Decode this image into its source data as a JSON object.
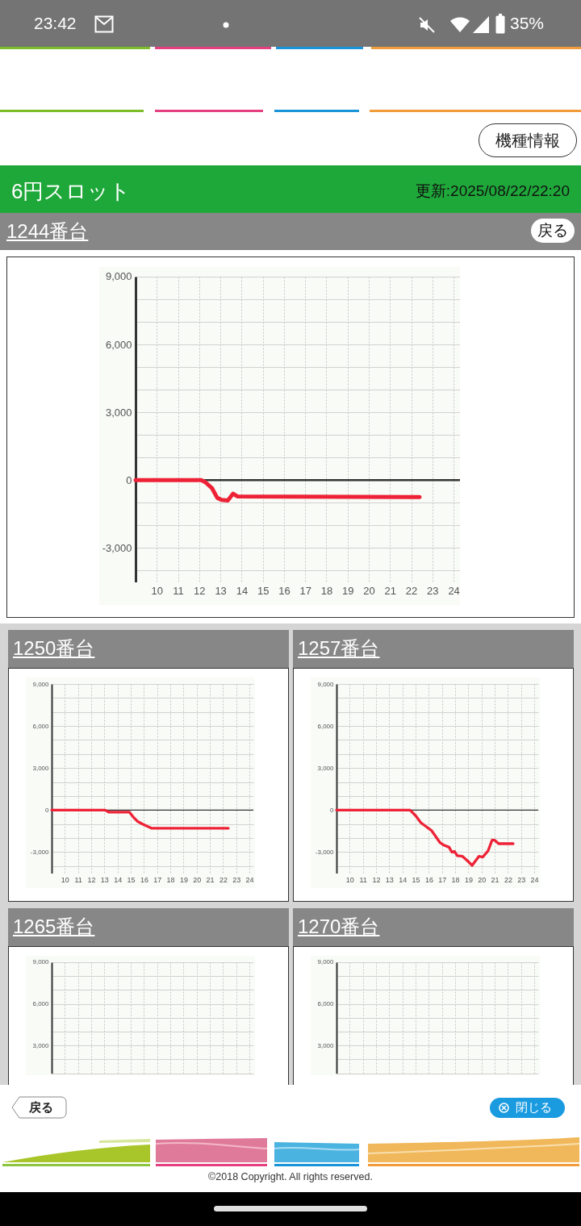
{
  "chart_data": [
    {
      "type": "line",
      "title": "1244番台",
      "annotations": [
        "23:42",
        "35%",
        "機種情報",
        "6円スロット",
        "更新:2025/08/22/22:20",
        "戻る",
        "戻る",
        "閉じる",
        "©2018 Copyright. All rights reserved."
      ],
      "series": [
        {
          "color": "#ee2237",
          "x": [
            9,
            12.1,
            12.3,
            12.6,
            12.85,
            13.05,
            13.35,
            13.6,
            13.8,
            22.4
          ],
          "values": [
            0,
            0,
            -100,
            -350,
            -780,
            -870,
            -900,
            -600,
            -720,
            -750
          ]
        }
      ],
      "xlim": [
        9,
        24.3
      ],
      "xticks": [
        10,
        11,
        12,
        13,
        14,
        15,
        16,
        17,
        18,
        19,
        20,
        21,
        22,
        23,
        24
      ],
      "ylim": [
        -4500,
        9000
      ],
      "yticks": [
        {
          "value": -4000,
          "label": null
        },
        {
          "value": -3000,
          "label": "-3,000"
        },
        {
          "value": -2000,
          "label": null
        },
        {
          "value": -1000,
          "label": null
        },
        {
          "value": 0,
          "label": "0"
        },
        {
          "value": 1000,
          "label": null
        },
        {
          "value": 2000,
          "label": null
        },
        {
          "value": 3000,
          "label": "3,000"
        },
        {
          "value": 4000,
          "label": null
        },
        {
          "value": 5000,
          "label": null
        },
        {
          "value": 6000,
          "label": "6,000"
        },
        {
          "value": 7000,
          "label": null
        },
        {
          "value": 8000,
          "label": null
        },
        {
          "value": 9000,
          "label": "9,000"
        }
      ],
      "grid": true,
      "ref_lines": [
        {
          "axis": "y",
          "value": 0,
          "color": "#333333"
        }
      ]
    },
    {
      "type": "line",
      "title": "1250番台",
      "series": [
        {
          "color": "#ee2237",
          "x": [
            9,
            13.05,
            13.35,
            14.9,
            15.2,
            15.5,
            15.9,
            16.6,
            22.4
          ],
          "values": [
            0,
            0,
            -150,
            -150,
            -500,
            -800,
            -1000,
            -1300,
            -1300
          ]
        }
      ],
      "xlim": [
        9,
        24.3
      ],
      "xticks": [
        10,
        11,
        12,
        13,
        14,
        15,
        16,
        17,
        18,
        19,
        20,
        21,
        22,
        23,
        24
      ],
      "ylim": [
        -4500,
        9000
      ],
      "yticks": [
        {
          "value": -4000,
          "label": null
        },
        {
          "value": -3000,
          "label": "-3,000"
        },
        {
          "value": -2000,
          "label": null
        },
        {
          "value": -1000,
          "label": null
        },
        {
          "value": 0,
          "label": "0"
        },
        {
          "value": 1000,
          "label": null
        },
        {
          "value": 2000,
          "label": null
        },
        {
          "value": 3000,
          "label": "3,000"
        },
        {
          "value": 4000,
          "label": null
        },
        {
          "value": 5000,
          "label": null
        },
        {
          "value": 6000,
          "label": "6,000"
        },
        {
          "value": 7000,
          "label": null
        },
        {
          "value": 8000,
          "label": null
        },
        {
          "value": 9000,
          "label": "9,000"
        }
      ],
      "grid": true,
      "ref_lines": [
        {
          "axis": "y",
          "value": 0,
          "color": "#333333"
        }
      ]
    },
    {
      "type": "line",
      "title": "1257番台",
      "series": [
        {
          "color": "#ee2237",
          "x": [
            9,
            14.58,
            15,
            15.4,
            15.9,
            16.2,
            16.5,
            16.83,
            17.13,
            17.54,
            17.75,
            17.95,
            18.16,
            18.56,
            18.97,
            19.28,
            19.8,
            20.1,
            20.5,
            20.8,
            21,
            21.3,
            22.4
          ],
          "values": [
            0,
            0,
            -400,
            -900,
            -1250,
            -1450,
            -1850,
            -2300,
            -2500,
            -2650,
            -3000,
            -2950,
            -3250,
            -3300,
            -3650,
            -3950,
            -3300,
            -3350,
            -2900,
            -2150,
            -2150,
            -2400,
            -2400
          ]
        }
      ],
      "xlim": [
        9,
        24.3
      ],
      "xticks": [
        10,
        11,
        12,
        13,
        14,
        15,
        16,
        17,
        18,
        19,
        20,
        21,
        22,
        23,
        24
      ],
      "ylim": [
        -4500,
        9000
      ],
      "yticks": [
        {
          "value": -4000,
          "label": null
        },
        {
          "value": -3000,
          "label": "-3,000"
        },
        {
          "value": -2000,
          "label": null
        },
        {
          "value": -1000,
          "label": null
        },
        {
          "value": 0,
          "label": "0"
        },
        {
          "value": 1000,
          "label": null
        },
        {
          "value": 2000,
          "label": null
        },
        {
          "value": 3000,
          "label": "3,000"
        },
        {
          "value": 4000,
          "label": null
        },
        {
          "value": 5000,
          "label": null
        },
        {
          "value": 6000,
          "label": "6,000"
        },
        {
          "value": 7000,
          "label": null
        },
        {
          "value": 8000,
          "label": null
        },
        {
          "value": 9000,
          "label": "9,000"
        }
      ],
      "grid": true,
      "ref_lines": [
        {
          "axis": "y",
          "value": 0,
          "color": "#333333"
        }
      ]
    },
    {
      "type": "line",
      "title": "1265番台",
      "xlim": [
        9,
        24.3
      ],
      "xticks": [
        10,
        11,
        12,
        13,
        14,
        15,
        16,
        17,
        18,
        19,
        20,
        21,
        22,
        23,
        24
      ],
      "ylim": [
        1000,
        9000
      ],
      "yticks": [
        {
          "value": 1000,
          "label": null
        },
        {
          "value": 2000,
          "label": null
        },
        {
          "value": 3000,
          "label": "3,000"
        },
        {
          "value": 4000,
          "label": null
        },
        {
          "value": 5000,
          "label": null
        },
        {
          "value": 6000,
          "label": "6,000"
        },
        {
          "value": 7000,
          "label": null
        },
        {
          "value": 8000,
          "label": null
        },
        {
          "value": 9000,
          "label": "9,000"
        }
      ],
      "grid": true,
      "tick_labels": "y"
    },
    {
      "type": "line",
      "title": "1270番台",
      "xlim": [
        9,
        24.3
      ],
      "xticks": [
        10,
        11,
        12,
        13,
        14,
        15,
        16,
        17,
        18,
        19,
        20,
        21,
        22,
        23,
        24
      ],
      "ylim": [
        1000,
        9000
      ],
      "yticks": [
        {
          "value": 1000,
          "label": null
        },
        {
          "value": 2000,
          "label": null
        },
        {
          "value": 3000,
          "label": "3,000"
        },
        {
          "value": 4000,
          "label": null
        },
        {
          "value": 5000,
          "label": null
        },
        {
          "value": 6000,
          "label": "6,000"
        },
        {
          "value": 7000,
          "label": null
        },
        {
          "value": 8000,
          "label": null
        },
        {
          "value": 9000,
          "label": "9,000"
        }
      ],
      "grid": true,
      "tick_labels": "y"
    }
  ]
}
